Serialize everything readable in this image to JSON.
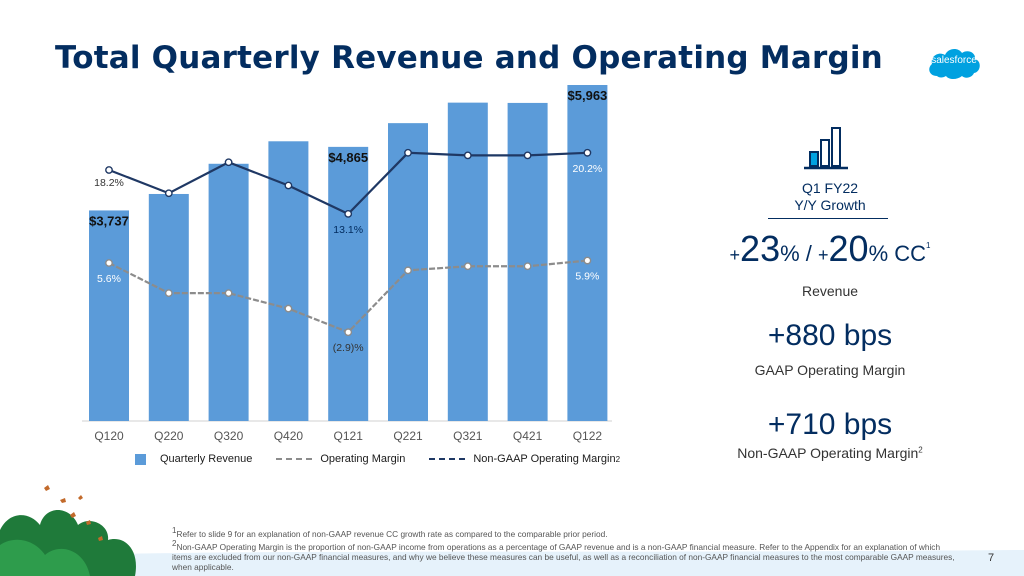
{
  "title": "Total Quarterly Revenue and Operating Margin",
  "logo_text": "salesforce",
  "colors": {
    "navy": "#032d60",
    "bar": "#5b9bd9",
    "gaap_line": "#8c8c8c",
    "nongaap_line": "#1f3864"
  },
  "chart_data": {
    "type": "bar",
    "categories": [
      "Q120",
      "Q220",
      "Q320",
      "Q420",
      "Q121",
      "Q221",
      "Q321",
      "Q421",
      "Q122"
    ],
    "series": [
      {
        "name": "Quarterly Revenue",
        "type": "bar",
        "values": [
          3737,
          4029,
          4565,
          4964,
          4865,
          5286,
          5650,
          5645,
          5963
        ]
      },
      {
        "name": "Operating Margin",
        "type": "line",
        "values": [
          5.6,
          1.9,
          1.9,
          0.0,
          -2.9,
          4.7,
          5.2,
          5.2,
          5.9
        ]
      },
      {
        "name": "Non-GAAP Operating Margin",
        "type": "line",
        "values": [
          18.2,
          15.5,
          19.1,
          16.4,
          13.1,
          20.2,
          19.9,
          19.9,
          20.2
        ]
      }
    ],
    "bar_labels": [
      {
        "index": 0,
        "text": "$3,737"
      },
      {
        "index": 4,
        "text": "$4,865"
      },
      {
        "index": 8,
        "text": "$5,963"
      }
    ],
    "gaap_labels": [
      {
        "index": 0,
        "text": "5.6%"
      },
      {
        "index": 4,
        "text": "(2.9)%"
      },
      {
        "index": 8,
        "text": "5.9%"
      }
    ],
    "nongaap_labels": [
      {
        "index": 0,
        "text": "18.2%"
      },
      {
        "index": 4,
        "text": "13.1%"
      },
      {
        "index": 8,
        "text": "20.2%"
      }
    ],
    "legend": {
      "revenue": "Quarterly Revenue",
      "gaap": "Operating Margin",
      "nongaap": "Non-GAAP Operating Margin",
      "nongaap_sup": "2"
    }
  },
  "kpi": {
    "heading_line1": "Q1 FY22",
    "heading_line2": "Y/Y Growth",
    "growth_prefix1": "+",
    "growth_value1": "23",
    "growth_unit1": "%",
    "growth_sep": " / ",
    "growth_prefix2": "+",
    "growth_value2": "20",
    "growth_unit2": "% CC",
    "growth_sup": "1",
    "revenue_label": "Revenue",
    "gaap_value": "+880 bps",
    "gaap_label": "GAAP Operating Margin",
    "nongaap_value": "+710 bps",
    "nongaap_label": "Non-GAAP Operating Margin",
    "nongaap_sup": "2"
  },
  "footnotes": {
    "note1_sup": "1",
    "note1": "Refer to slide 9 for an explanation of non-GAAP revenue CC growth rate as compared to the comparable prior period.",
    "note2_sup": "2",
    "note2": "Non-GAAP Operating Margin is the proportion of non-GAAP income from operations as a percentage of GAAP revenue and is a non-GAAP financial measure. Refer to the Appendix for an explanation of which items are excluded from our non-GAAP financial measures, and why we believe these measures can be useful, as well as a reconciliation of non-GAAP financial measures to the most comparable GAAP measures, when applicable."
  },
  "page_number": "7"
}
